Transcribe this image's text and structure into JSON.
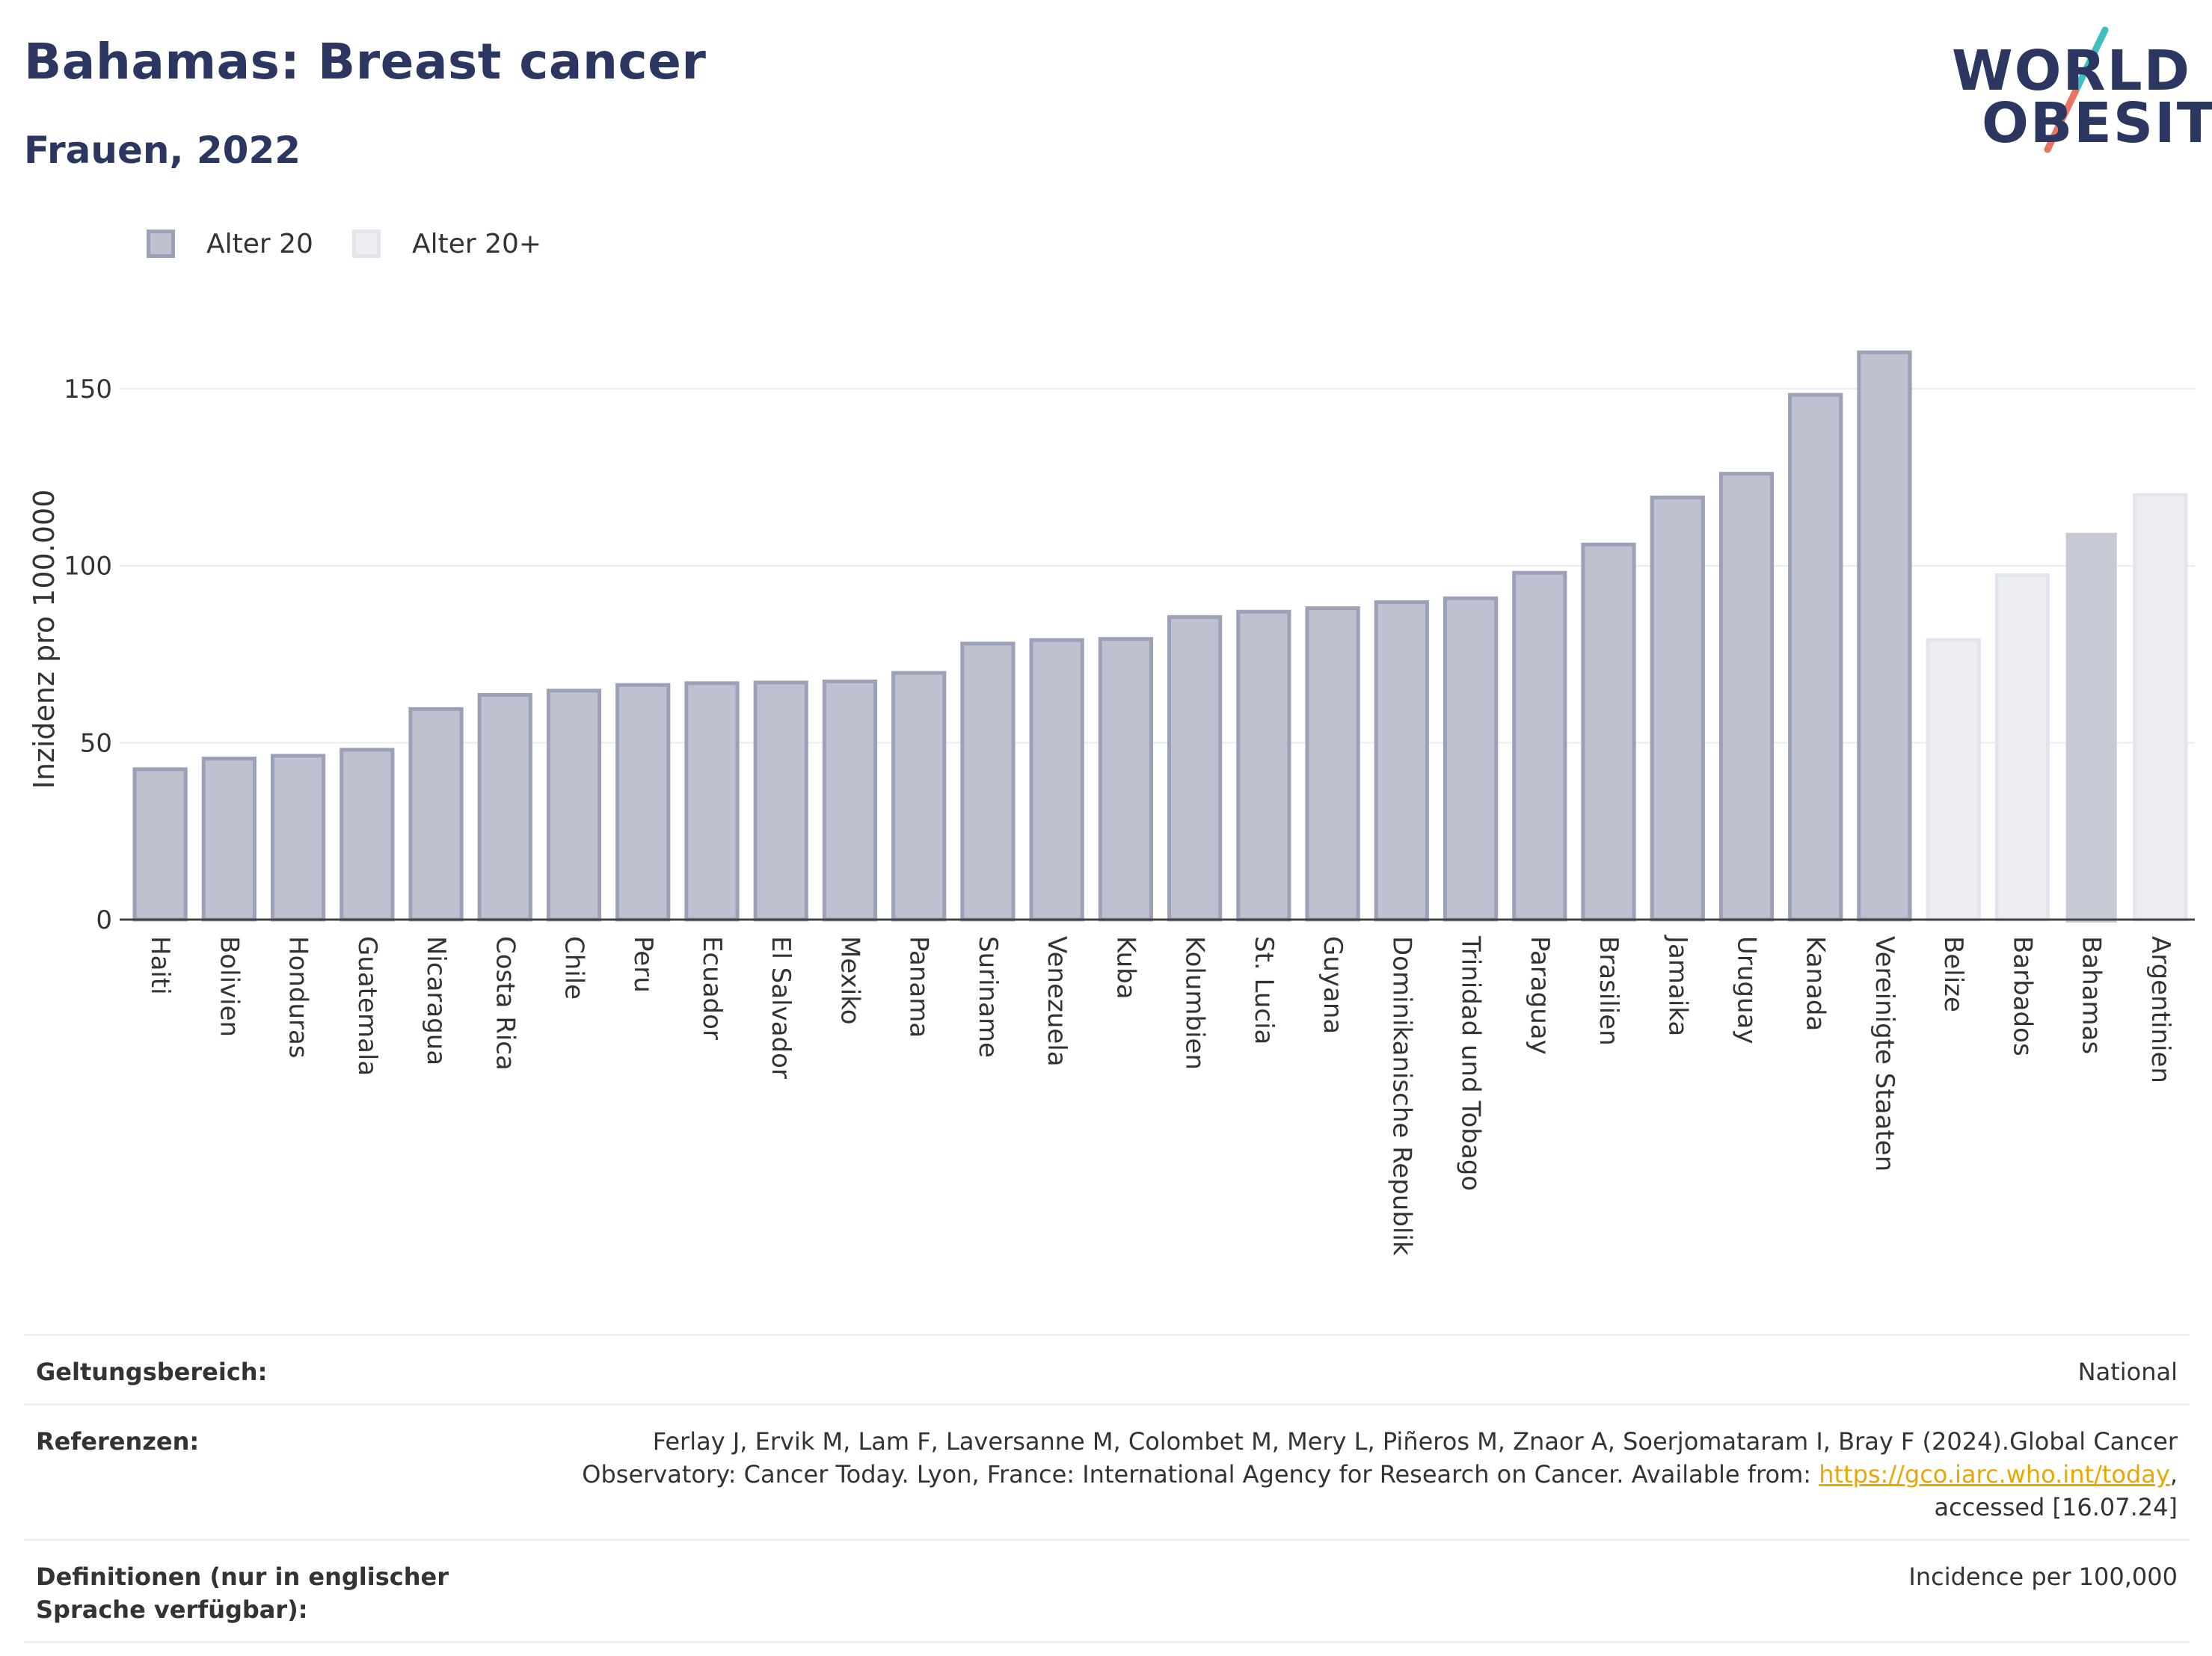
{
  "header": {
    "title": "Bahamas: Breast cancer",
    "subtitle": "Frauen, 2022"
  },
  "logo": {
    "line1": "WORLD",
    "line2": "OBESITY"
  },
  "legend": {
    "items": [
      {
        "label": "Alter 20",
        "color": "#bec1cf"
      },
      {
        "label": "Alter 20+",
        "color": "#eceef2"
      }
    ]
  },
  "chart_data": {
    "type": "bar",
    "ylabel": "Inzidenz pro 100.000",
    "ylim": [
      0,
      165
    ],
    "yticks": [
      0,
      50,
      100,
      150
    ],
    "grid": true,
    "legend_position": "top-left",
    "categories": [
      "Haiti",
      "Bolivien",
      "Honduras",
      "Guatemala",
      "Nicaragua",
      "Costa Rica",
      "Chile",
      "Peru",
      "Ecuador",
      "El Salvador",
      "Mexiko",
      "Panama",
      "Suriname",
      "Venezuela",
      "Kuba",
      "Kolumbien",
      "St. Lucia",
      "Guyana",
      "Dominikanische Republik",
      "Trinidad und Tobago",
      "Paraguay",
      "Brasilien",
      "Jamaika",
      "Uruguay",
      "Kanada",
      "Vereinigte Staaten",
      "Belize",
      "Barbados",
      "Bahamas",
      "Argentinien"
    ],
    "values": [
      42.5,
      45.5,
      46.3,
      48.0,
      59.5,
      63.5,
      64.7,
      66.3,
      66.8,
      67.0,
      67.3,
      69.7,
      78.0,
      79.0,
      79.3,
      85.5,
      87.0,
      88.0,
      89.7,
      90.8,
      98.0,
      106.0,
      119.3,
      126.0,
      148.3,
      160.3,
      79.0,
      97.3,
      109.3,
      120.0
    ],
    "groups": [
      "Alter 20",
      "Alter 20",
      "Alter 20",
      "Alter 20",
      "Alter 20",
      "Alter 20",
      "Alter 20",
      "Alter 20",
      "Alter 20",
      "Alter 20",
      "Alter 20",
      "Alter 20",
      "Alter 20",
      "Alter 20",
      "Alter 20",
      "Alter 20",
      "Alter 20",
      "Alter 20",
      "Alter 20",
      "Alter 20",
      "Alter 20",
      "Alter 20",
      "Alter 20",
      "Alter 20",
      "Alter 20",
      "Alter 20",
      "Alter 20+",
      "Alter 20+",
      "Alter 20",
      "Alter 20+"
    ],
    "highlight": "Bahamas",
    "colors": {
      "age20_fill": "#bec1cf",
      "age20_stroke": "#9ca1b8",
      "age20plus_fill": "#eceef2",
      "age20plus_stroke": "#e3e5ec",
      "highlight_fill": "#c7c9d5"
    }
  },
  "meta": {
    "rows": [
      {
        "key": "Geltungsbereich:",
        "value": "National"
      },
      {
        "key": "Referenzen:",
        "value_before": "Ferlay J, Ervik M, Lam F, Laversanne M, Colombet M, Mery L, Piñeros M, Znaor A, Soerjomataram I, Bray F (2024).Global Cancer Observatory: Cancer Today. Lyon, France: International Agency for Research on Cancer. Available from: ",
        "link": "https://gco.iarc.who.int/today",
        "value_after": ", accessed [16.07.24]"
      },
      {
        "key": "Definitionen (nur in englischer Sprache verfügbar):",
        "value": "Incidence per 100,000"
      }
    ]
  },
  "colors": {
    "brand_navy": "#2b3761",
    "logo_slash_teal": "#3fbfbd",
    "logo_slash_coral": "#e8735f"
  }
}
